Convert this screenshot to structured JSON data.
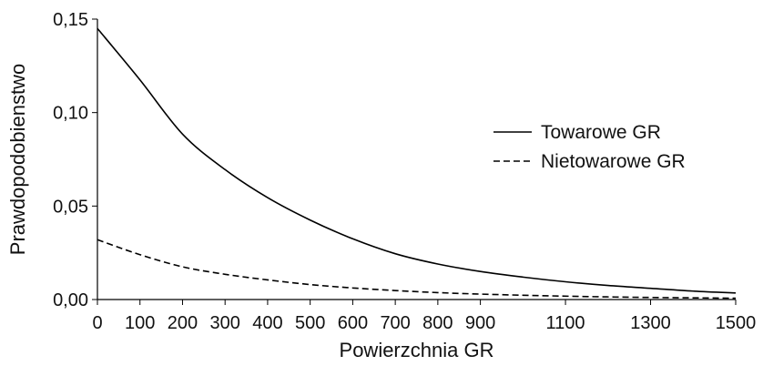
{
  "chart_data": {
    "type": "line",
    "title": "",
    "xlabel": "Powierzchnia GR",
    "ylabel": "Prawdopodobienstwo",
    "xlim": [
      0,
      1500
    ],
    "ylim": [
      0,
      0.15
    ],
    "x_ticks": [
      0,
      100,
      200,
      300,
      400,
      500,
      600,
      700,
      800,
      900,
      1100,
      1300,
      1500
    ],
    "x_tick_labels": [
      "0",
      "100",
      "200",
      "300",
      "400",
      "500",
      "600",
      "700",
      "800",
      "900",
      "1100",
      "1300",
      "1500"
    ],
    "y_ticks": [
      0,
      0.05,
      0.1,
      0.15
    ],
    "y_tick_labels": [
      "0,00",
      "0,05",
      "0,10",
      "0,15"
    ],
    "grid": false,
    "legend_position": "right",
    "series": [
      {
        "name": "Towarowe GR",
        "line_style": "solid",
        "color": "#000000",
        "x": [
          0,
          100,
          200,
          300,
          400,
          500,
          600,
          700,
          800,
          900,
          1000,
          1100,
          1200,
          1300,
          1400,
          1500
        ],
        "y": [
          0.145,
          0.1175,
          0.0885,
          0.0695,
          0.0545,
          0.0425,
          0.0325,
          0.0245,
          0.019,
          0.015,
          0.012,
          0.0095,
          0.0075,
          0.006,
          0.0045,
          0.0035
        ]
      },
      {
        "name": "Nietowarowe GR",
        "line_style": "dashed",
        "color": "#000000",
        "x": [
          0,
          100,
          200,
          300,
          400,
          500,
          600,
          700,
          800,
          900,
          1000,
          1100,
          1200,
          1300,
          1400,
          1500
        ],
        "y": [
          0.032,
          0.024,
          0.0175,
          0.0135,
          0.0105,
          0.008,
          0.0062,
          0.0048,
          0.0037,
          0.0029,
          0.0023,
          0.0018,
          0.0014,
          0.0011,
          0.0009,
          0.0007
        ]
      }
    ]
  }
}
